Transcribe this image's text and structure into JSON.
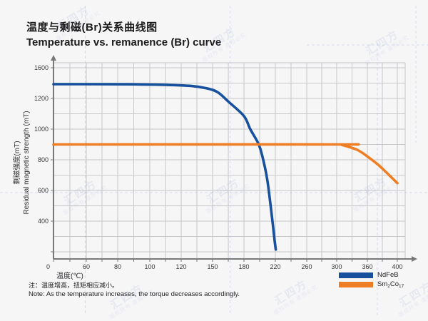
{
  "page": {
    "background_color": "#f6f6f7"
  },
  "header": {
    "title_zh": "温度与剩磁(Br)关系曲线图",
    "title_en": "Temperature vs. remanence (Br) curve"
  },
  "chart_data": {
    "type": "line",
    "title": "Temperature vs. remanence (Br) curve",
    "title_zh": "温度与剩磁(Br)关系曲线图",
    "x_axis": {
      "label": "温度(℃)",
      "tick_labels": [
        "0",
        "60",
        "80",
        "100",
        "120",
        "150",
        "180",
        "220",
        "260",
        "300",
        "360",
        "400"
      ],
      "tick_values": [
        0,
        60,
        80,
        100,
        120,
        150,
        180,
        220,
        260,
        300,
        360,
        400
      ],
      "note": "non-linear axis: unequal value increments drawn at equal pixel spacing"
    },
    "y_axis": {
      "label_zh": "剩磁强度(mT)",
      "label_en": "Residual magnetic strength (mT)",
      "tick_labels": [
        "0",
        "400",
        "600",
        "800",
        "1000",
        "1200",
        "1600"
      ],
      "tick_values": [
        0,
        400,
        600,
        800,
        1000,
        1200,
        1600
      ],
      "ylim": [
        0,
        1600
      ]
    },
    "grid": true,
    "legend_position": "bottom-right",
    "series": [
      {
        "name": "NdFeB",
        "color": "#17509d",
        "points": [
          [
            0,
            1386
          ],
          [
            60,
            1386
          ],
          [
            90,
            1384
          ],
          [
            110,
            1378
          ],
          [
            130,
            1362
          ],
          [
            145,
            1330
          ],
          [
            155,
            1280
          ],
          [
            165,
            1180
          ],
          [
            180,
            1085
          ],
          [
            188,
            1000
          ],
          [
            199,
            898
          ],
          [
            205,
            790
          ],
          [
            210,
            660
          ],
          [
            214,
            500
          ],
          [
            217,
            350
          ],
          [
            219,
            200
          ],
          [
            220.5,
            100
          ]
        ]
      },
      {
        "name": "Sm2Co17",
        "color": "#ef7d23",
        "points": [
          [
            0,
            900
          ],
          [
            300,
            900
          ],
          [
            310,
            897
          ],
          [
            340,
            865
          ],
          [
            360,
            822
          ],
          [
            375,
            765
          ],
          [
            388,
            705
          ],
          [
            400,
            648
          ]
        ]
      }
    ],
    "legend": {
      "items": [
        {
          "color": "#17509d",
          "parts": [
            {
              "t": "NdFeB"
            }
          ]
        },
        {
          "color": "#ef7d23",
          "parts": [
            {
              "t": "Sm"
            },
            {
              "sub": "2"
            },
            {
              "t": "Co"
            },
            {
              "sub": "17"
            }
          ]
        }
      ]
    }
  },
  "notes": {
    "line_zh": "注：温度增高，扭矩相应减小。",
    "line_en": "Note: As the temperature increases, the torque decreases accordingly."
  },
  "watermark": {
    "brand": "汇四方",
    "notice": "版权所有 盗图必究"
  }
}
